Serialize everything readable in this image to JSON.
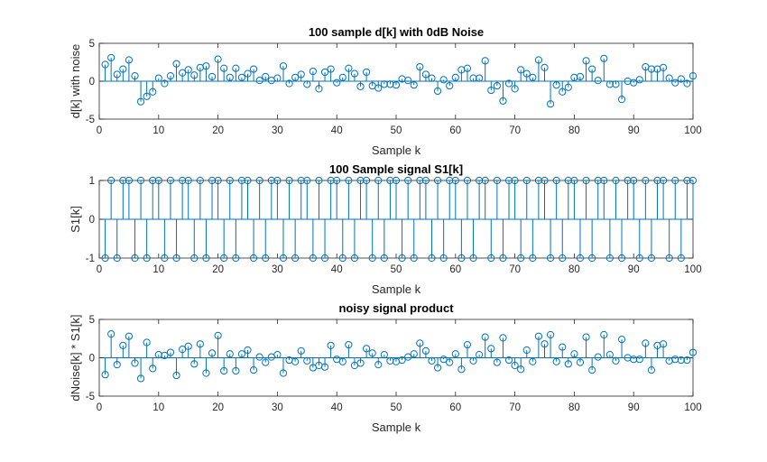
{
  "colors": {
    "stem": "#0072BD",
    "axis": "#262626",
    "background": "#ffffff"
  },
  "chart_data": [
    {
      "type": "scatter",
      "style": "stem",
      "title": "100 sample d[k] with 0dB Noise",
      "xlabel": "Sample k",
      "ylabel": "d[k] with noise",
      "xlim": [
        0,
        100
      ],
      "ylim": [
        -5,
        5
      ],
      "xticks": [
        0,
        10,
        20,
        30,
        40,
        50,
        60,
        70,
        80,
        90,
        100
      ],
      "yticks": [
        -5,
        0,
        5
      ],
      "grid": false,
      "values": [
        2.2,
        3.1,
        0.9,
        1.6,
        2.8,
        0.7,
        -2.7,
        -2.0,
        -1.4,
        0.4,
        -0.3,
        0.7,
        2.3,
        1.1,
        1.5,
        0.8,
        1.8,
        2.0,
        0.6,
        2.9,
        1.7,
        0.5,
        1.7,
        0.5,
        1.0,
        1.6,
        0.1,
        0.6,
        0.1,
        0.4,
        2.0,
        -0.3,
        0.5,
        0.9,
        -0.4,
        1.3,
        -1.0,
        1.2,
        1.6,
        -0.2,
        0.5,
        1.7,
        1.0,
        -0.7,
        1.2,
        -0.6,
        -0.9,
        -0.4,
        -0.4,
        -0.5,
        0.3,
        0.1,
        -0.5,
        1.9,
        0.9,
        0.4,
        -1.3,
        0.2,
        -0.6,
        0.5,
        1.5,
        1.7,
        0.4,
        0.4,
        2.7,
        -1.2,
        -0.6,
        -2.6,
        -0.3,
        -1.0,
        1.5,
        1.0,
        0.5,
        2.8,
        1.8,
        -3.0,
        -0.5,
        -1.4,
        -0.8,
        0.5,
        0.6,
        2.7,
        1.6,
        0.1,
        3.0,
        -0.4,
        -0.4,
        -2.4,
        0.0,
        -0.2,
        0.2,
        1.9,
        1.6,
        1.6,
        1.8,
        0.4,
        -0.2,
        0.3,
        -0.3,
        0.7
      ]
    },
    {
      "type": "scatter",
      "style": "stem",
      "title": "100 Sample signal S1[k]",
      "xlabel": "Sample k",
      "ylabel": "S1[k]",
      "xlim": [
        0,
        100
      ],
      "ylim": [
        -1,
        1
      ],
      "xticks": [
        0,
        10,
        20,
        30,
        40,
        50,
        60,
        70,
        80,
        90,
        100
      ],
      "yticks": [
        -1,
        0,
        1
      ],
      "grid": false,
      "values": [
        -1,
        1,
        -1,
        1,
        1,
        -1,
        1,
        -1,
        1,
        1,
        -1,
        1,
        -1,
        1,
        1,
        -1,
        1,
        -1,
        1,
        1,
        -1,
        1,
        -1,
        1,
        1,
        -1,
        1,
        -1,
        1,
        1,
        -1,
        1,
        -1,
        1,
        1,
        -1,
        1,
        -1,
        1,
        1,
        -1,
        1,
        -1,
        1,
        1,
        -1,
        1,
        -1,
        1,
        1,
        -1,
        1,
        -1,
        1,
        1,
        -1,
        1,
        -1,
        1,
        1,
        -1,
        1,
        -1,
        1,
        1,
        -1,
        1,
        -1,
        1,
        1,
        -1,
        1,
        -1,
        1,
        1,
        -1,
        1,
        -1,
        1,
        1,
        -1,
        1,
        -1,
        1,
        1,
        -1,
        1,
        -1,
        1,
        1,
        -1,
        1,
        -1,
        1,
        1,
        -1,
        1,
        -1,
        1,
        1
      ]
    },
    {
      "type": "scatter",
      "style": "stem",
      "title": "noisy signal product",
      "xlabel": "Sample k",
      "ylabel": "dNoise[k] * S1[k]",
      "xlim": [
        0,
        100
      ],
      "ylim": [
        -5,
        5
      ],
      "xticks": [
        0,
        10,
        20,
        30,
        40,
        50,
        60,
        70,
        80,
        90,
        100
      ],
      "yticks": [
        -5,
        0,
        5
      ],
      "grid": false,
      "values": [
        -2.2,
        3.1,
        -0.9,
        1.6,
        2.8,
        -0.7,
        -2.7,
        2.0,
        -1.4,
        0.4,
        0.3,
        0.7,
        -2.3,
        1.1,
        1.5,
        -0.8,
        1.8,
        -2.0,
        0.6,
        2.9,
        -1.7,
        0.5,
        -1.7,
        0.5,
        1.0,
        -1.6,
        0.1,
        -0.6,
        0.1,
        0.4,
        -2.0,
        -0.3,
        -0.5,
        0.9,
        -0.4,
        -1.3,
        -1.0,
        -1.2,
        1.6,
        -0.2,
        -0.5,
        1.7,
        -1.0,
        -0.7,
        1.2,
        0.6,
        -0.9,
        0.4,
        -0.4,
        -0.5,
        -0.3,
        0.1,
        0.5,
        1.9,
        0.9,
        -0.4,
        -1.3,
        -0.2,
        -0.6,
        0.5,
        -1.5,
        1.7,
        -0.4,
        0.4,
        2.7,
        1.2,
        -0.6,
        2.6,
        -0.3,
        -1.0,
        -1.5,
        1.0,
        -0.5,
        2.8,
        1.8,
        3.0,
        -0.5,
        1.4,
        -0.8,
        0.5,
        -0.6,
        2.7,
        -1.6,
        0.1,
        3.0,
        0.4,
        -0.4,
        2.4,
        0.0,
        -0.2,
        -0.2,
        1.9,
        -1.6,
        1.6,
        1.8,
        -0.4,
        -0.2,
        -0.3,
        -0.3,
        0.7
      ]
    }
  ]
}
